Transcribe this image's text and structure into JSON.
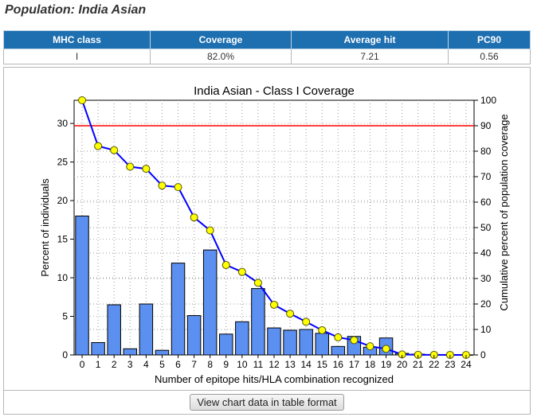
{
  "page": {
    "title": "Population: India Asian",
    "button_label": "View chart data in table format"
  },
  "summary_table": {
    "headers": [
      "MHC class",
      "Coverage",
      "Average hit",
      "PC90"
    ],
    "row": [
      "I",
      "82.0%",
      "7.21",
      "0.56"
    ]
  },
  "colors": {
    "header_bg": "#1e6fb0",
    "bar_fill": "#5b8ff0",
    "line": "#0000ff",
    "marker": "#ffff00",
    "threshold": "#ff0000"
  },
  "chart_data": {
    "type": "bar",
    "title": "India Asian - Class I Coverage",
    "xlabel": "Number of epitope hits/HLA combination recognized",
    "ylabel": "Percent of individuals",
    "y2label": "Cumulative percent of population coverage",
    "categories": [
      "0",
      "1",
      "2",
      "3",
      "4",
      "5",
      "6",
      "7",
      "8",
      "9",
      "10",
      "11",
      "12",
      "13",
      "14",
      "15",
      "16",
      "17",
      "18",
      "19",
      "20",
      "21",
      "22",
      "23",
      "24"
    ],
    "ylim": [
      0,
      33
    ],
    "y_ticks": [
      0,
      5,
      10,
      15,
      20,
      25,
      30
    ],
    "y2lim": [
      0,
      100
    ],
    "y2_ticks": [
      0,
      10,
      20,
      30,
      40,
      50,
      60,
      70,
      80,
      90,
      100
    ],
    "grid": true,
    "series": [
      {
        "axis": "left",
        "kind": "bar",
        "values": [
          18.0,
          1.6,
          6.5,
          0.8,
          6.6,
          0.6,
          11.9,
          5.1,
          13.6,
          2.7,
          4.3,
          8.6,
          3.5,
          3.2,
          3.3,
          2.8,
          1.1,
          2.4,
          1.0,
          2.2,
          0.2,
          0.1,
          0.05,
          0.03,
          0.01
        ]
      },
      {
        "axis": "right",
        "kind": "line",
        "values": [
          100,
          82.0,
          80.4,
          73.9,
          73.1,
          66.5,
          65.9,
          54.0,
          48.9,
          35.3,
          32.6,
          28.3,
          19.7,
          16.2,
          13.0,
          9.7,
          6.9,
          5.8,
          3.4,
          2.4,
          0.2,
          0.05,
          0.02,
          0.01,
          0
        ]
      }
    ],
    "threshold": 90
  }
}
